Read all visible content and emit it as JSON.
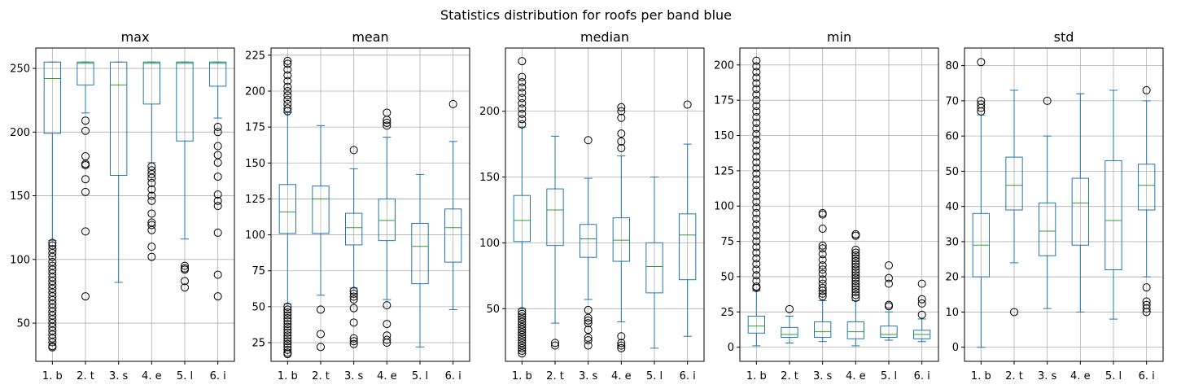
{
  "figure_title": "Statistics distribution for roofs per band blue",
  "colors": {
    "box": "#1f77b4",
    "median": "#2ca02c",
    "grid": "#b0b0b0",
    "flier": "#000000"
  },
  "chart_data": [
    {
      "type": "box",
      "title": "max",
      "categories": [
        "1. b",
        "2. t",
        "3. s",
        "4. e",
        "5. l",
        "6. i"
      ],
      "ylim": [
        20,
        266
      ],
      "yticks": [
        50,
        100,
        150,
        200,
        250
      ],
      "grid": true,
      "boxes": [
        {
          "whislo": 115,
          "q1": 199,
          "med": 242,
          "q3": 255,
          "whishi": 255,
          "fliers": [
            113,
            111,
            108,
            105,
            102,
            98,
            95,
            92,
            89,
            86,
            83,
            80,
            77,
            74,
            71,
            68,
            65,
            62,
            59,
            56,
            53,
            50,
            47,
            44,
            41,
            38,
            35,
            32,
            31
          ]
        },
        {
          "whislo": 215,
          "q1": 237,
          "med": 254,
          "q3": 255,
          "whishi": 255,
          "fliers": [
            209,
            201,
            181,
            175,
            174,
            163,
            153,
            122,
            71
          ]
        },
        {
          "whislo": 82,
          "q1": 166,
          "med": 237,
          "q3": 255,
          "whishi": 255,
          "fliers": []
        },
        {
          "whislo": 176,
          "q1": 222,
          "med": 254,
          "q3": 255,
          "whishi": 255,
          "fliers": [
            173,
            170,
            167,
            164,
            160,
            155,
            150,
            146,
            136,
            129,
            127,
            123,
            110,
            102
          ]
        },
        {
          "whislo": 116,
          "q1": 193,
          "med": 254,
          "q3": 255,
          "whishi": 255,
          "fliers": [
            95,
            93,
            92,
            83,
            78
          ]
        },
        {
          "whislo": 211,
          "q1": 236,
          "med": 254,
          "q3": 255,
          "whishi": 255,
          "fliers": [
            204,
            200,
            189,
            182,
            176,
            165,
            151,
            146,
            142,
            121,
            88,
            71
          ]
        }
      ]
    },
    {
      "type": "box",
      "title": "mean",
      "categories": [
        "1. b",
        "2. t",
        "3. s",
        "4. e",
        "5. l",
        "6. i"
      ],
      "ylim": [
        12,
        230
      ],
      "yticks": [
        25,
        50,
        75,
        100,
        125,
        150,
        175,
        200,
        225
      ],
      "grid": true,
      "boxes": [
        {
          "whislo": 52,
          "q1": 101,
          "med": 116,
          "q3": 135,
          "whishi": 185,
          "fliers": [
            221,
            219,
            215,
            211,
            207,
            203,
            200,
            197,
            194,
            191,
            188,
            186,
            50,
            48,
            46,
            44,
            42,
            40,
            38,
            36,
            34,
            32,
            30,
            28,
            26,
            24,
            22,
            20,
            18,
            17
          ]
        },
        {
          "whislo": 58,
          "q1": 101,
          "med": 125,
          "q3": 134,
          "whishi": 176,
          "fliers": [
            48,
            31,
            22
          ]
        },
        {
          "whislo": 63,
          "q1": 93,
          "med": 105,
          "q3": 115,
          "whishi": 146,
          "fliers": [
            159,
            61,
            59,
            57,
            55,
            49,
            39,
            28,
            26,
            24
          ]
        },
        {
          "whislo": 55,
          "q1": 96,
          "med": 110,
          "q3": 125,
          "whishi": 168,
          "fliers": [
            185,
            180,
            178,
            176,
            51,
            38,
            30,
            27,
            25
          ]
        },
        {
          "whislo": 22,
          "q1": 66,
          "med": 92,
          "q3": 108,
          "whishi": 142,
          "fliers": []
        },
        {
          "whislo": 48,
          "q1": 81,
          "med": 105,
          "q3": 118,
          "whishi": 165,
          "fliers": [
            191
          ]
        }
      ]
    },
    {
      "type": "box",
      "title": "median",
      "categories": [
        "1. b",
        "2. t",
        "3. s",
        "4. e",
        "5. l",
        "6. i"
      ],
      "ylim": [
        10,
        248
      ],
      "yticks": [
        50,
        100,
        150,
        200
      ],
      "grid": true,
      "boxes": [
        {
          "whislo": 50,
          "q1": 101,
          "med": 117,
          "q3": 136,
          "whishi": 188,
          "fliers": [
            238,
            226,
            222,
            218,
            214,
            210,
            206,
            202,
            198,
            194,
            190,
            48,
            46,
            44,
            42,
            40,
            38,
            36,
            34,
            32,
            30,
            28,
            26,
            24,
            22,
            20,
            18,
            16
          ]
        },
        {
          "whislo": 39,
          "q1": 98,
          "med": 125,
          "q3": 141,
          "whishi": 181,
          "fliers": [
            24,
            22
          ]
        },
        {
          "whislo": 57,
          "q1": 89,
          "med": 103,
          "q3": 114,
          "whishi": 149,
          "fliers": [
            178,
            49,
            43,
            41,
            39,
            34,
            28,
            26,
            22
          ]
        },
        {
          "whislo": 40,
          "q1": 86,
          "med": 102,
          "q3": 119,
          "whishi": 166,
          "fliers": [
            203,
            200,
            195,
            183,
            177,
            172,
            29,
            24,
            22,
            20
          ]
        },
        {
          "whislo": 20,
          "q1": 62,
          "med": 82,
          "q3": 100,
          "whishi": 150,
          "fliers": []
        },
        {
          "whislo": 29,
          "q1": 72,
          "med": 106,
          "q3": 122,
          "whishi": 175,
          "fliers": [
            205
          ]
        }
      ]
    },
    {
      "type": "box",
      "title": "min",
      "categories": [
        "1. b",
        "2. t",
        "3. s",
        "4. e",
        "5. l",
        "6. i"
      ],
      "ylim": [
        -10,
        212
      ],
      "yticks": [
        0,
        25,
        50,
        75,
        100,
        125,
        150,
        175,
        200
      ],
      "grid": true,
      "boxes": [
        {
          "whislo": 1,
          "q1": 10,
          "med": 15,
          "q3": 22,
          "whishi": 40,
          "fliers": [
            203,
            199,
            195,
            191,
            187,
            183,
            179,
            175,
            171,
            167,
            163,
            159,
            155,
            151,
            147,
            143,
            139,
            135,
            131,
            127,
            123,
            119,
            115,
            111,
            107,
            103,
            99,
            95,
            91,
            87,
            83,
            79,
            75,
            71,
            67,
            63,
            59,
            55,
            51,
            47,
            43,
            42
          ]
        },
        {
          "whislo": 3,
          "q1": 7,
          "med": 9,
          "q3": 14,
          "whishi": 22,
          "fliers": [
            27
          ]
        },
        {
          "whislo": 4,
          "q1": 7,
          "med": 11,
          "q3": 18,
          "whishi": 33,
          "fliers": [
            95,
            94,
            84,
            72,
            70,
            66,
            62,
            58,
            55,
            52,
            48,
            45,
            42,
            40,
            38,
            36
          ]
        },
        {
          "whislo": 1,
          "q1": 6,
          "med": 11,
          "q3": 18,
          "whishi": 33,
          "fliers": [
            80,
            79,
            69,
            67,
            65,
            63,
            61,
            59,
            57,
            55,
            53,
            51,
            49,
            47,
            45,
            43,
            41,
            39,
            37,
            35
          ]
        },
        {
          "whislo": 5,
          "q1": 7,
          "med": 9,
          "q3": 15,
          "whishi": 25,
          "fliers": [
            58,
            49,
            45,
            30,
            29
          ]
        },
        {
          "whislo": 4,
          "q1": 6,
          "med": 9,
          "q3": 12,
          "whishi": 20,
          "fliers": [
            45,
            34,
            31,
            23
          ]
        }
      ]
    },
    {
      "type": "box",
      "title": "std",
      "categories": [
        "1. b",
        "2. t",
        "3. s",
        "4. e",
        "5. l",
        "6. i"
      ],
      "ylim": [
        -4,
        85
      ],
      "yticks": [
        0,
        10,
        20,
        30,
        40,
        50,
        60,
        70,
        80
      ],
      "grid": true,
      "boxes": [
        {
          "whislo": 0,
          "q1": 20,
          "med": 29,
          "q3": 38,
          "whishi": 66,
          "fliers": [
            81,
            70,
            69,
            68,
            67
          ]
        },
        {
          "whislo": 24,
          "q1": 39,
          "med": 46,
          "q3": 54,
          "whishi": 73,
          "fliers": [
            10
          ]
        },
        {
          "whislo": 11,
          "q1": 26,
          "med": 33,
          "q3": 41,
          "whishi": 60,
          "fliers": [
            70
          ]
        },
        {
          "whislo": 10,
          "q1": 29,
          "med": 41,
          "q3": 48,
          "whishi": 72,
          "fliers": []
        },
        {
          "whislo": 8,
          "q1": 22,
          "med": 36,
          "q3": 53,
          "whishi": 73,
          "fliers": []
        },
        {
          "whislo": 20,
          "q1": 39,
          "med": 46,
          "q3": 52,
          "whishi": 70,
          "fliers": [
            73,
            17,
            13,
            12,
            11,
            10
          ]
        }
      ]
    }
  ]
}
